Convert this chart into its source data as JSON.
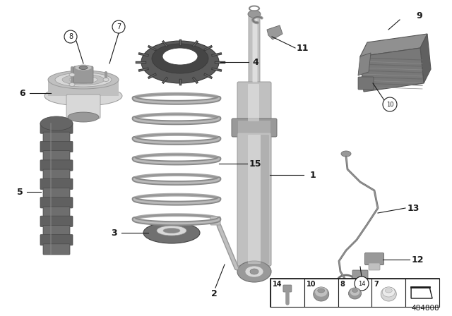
{
  "bg_color": "#ffffff",
  "diagram_number": "484808",
  "gray_dark": "#707070",
  "gray_med": "#999999",
  "gray_light": "#c0c0c0",
  "gray_lighter": "#d8d8d8",
  "gray_lightest": "#ebebeb",
  "black": "#1a1a1a",
  "parts_colors": {
    "shock_body": "#b8b8b8",
    "shock_shaft": "#c8c8c8",
    "shock_flange": "#a0a0a0",
    "spring": "#8a8a8a",
    "mount": "#b0b0b0",
    "bump": "#686868",
    "ring": "#585858",
    "edc": "#787878"
  }
}
